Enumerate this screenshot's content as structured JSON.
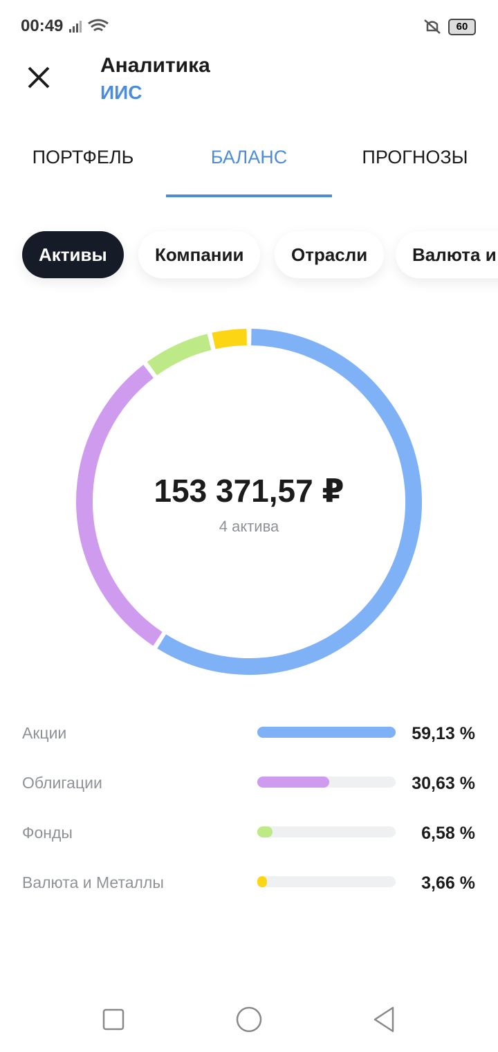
{
  "status_bar": {
    "time": "00:49",
    "battery": "60"
  },
  "header": {
    "title": "Аналитика",
    "subtitle": "ИИС"
  },
  "tabs": [
    "ПОРТФЕЛЬ",
    "БАЛАНС",
    "ПРОГНОЗЫ"
  ],
  "filters": [
    "Активы",
    "Компании",
    "Отрасли",
    "Валюта и"
  ],
  "chart_data": {
    "type": "donut",
    "center_value": "153 371,57 ₽",
    "center_label": "4 актива",
    "categories": [
      "Акции",
      "Облигации",
      "Фонды",
      "Валюта и Металлы"
    ],
    "values": [
      59.13,
      30.63,
      6.58,
      3.66
    ],
    "value_labels": [
      "59,13 %",
      "30,63 %",
      "6,58 %",
      "3,66 %"
    ],
    "colors": [
      "#7fb1f6",
      "#cf9bee",
      "#bde987",
      "#fcd514"
    ]
  }
}
